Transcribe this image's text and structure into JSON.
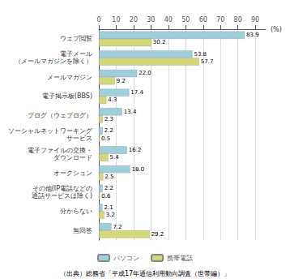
{
  "chart_data": {
    "type": "bar",
    "orientation": "horizontal",
    "categories": [
      "ウェブ閲覧",
      "電子メール\n（メールマガジンを除く）",
      "メールマガジン",
      "電子掲示板(BBS)",
      "ブログ（ウェブログ）",
      "ソーシャルネットワーキング\nサービス",
      "電子ファイルの交換・\nダウンロード",
      "オークション",
      "その他(IP電話などの\n通話サービスは除く)",
      "分からない",
      "無回答"
    ],
    "series": [
      {
        "name": "パソコン",
        "color": "#9ECFDB",
        "values": [
          83.9,
          53.8,
          22.0,
          17.4,
          13.4,
          2.2,
          16.2,
          18.0,
          2.2,
          2.1,
          7.2
        ],
        "value_labels": [
          "83.9",
          "53.8",
          "22.0",
          "17.4",
          "13.4",
          "2.2",
          "16.2",
          "18.0",
          "2.2",
          "2.1",
          "7.2"
        ]
      },
      {
        "name": "携帯電話",
        "color": "#D4D87A",
        "values": [
          30.2,
          57.7,
          9.2,
          4.3,
          2.3,
          0.5,
          5.4,
          2.5,
          0.6,
          3.2,
          29.2
        ],
        "value_labels": [
          "30.2",
          "57.7",
          "9.2",
          "4.3",
          "2.3",
          "0.5",
          "5.4",
          "2.5",
          "0.6",
          "3.2",
          "29.2"
        ]
      }
    ],
    "xlabel": "(%)",
    "xlim": [
      0,
      96
    ],
    "xticks": [
      0,
      10,
      20,
      30,
      40,
      50,
      60,
      70,
      80,
      90
    ],
    "grid": true,
    "legend": "bottom",
    "data_labels": true,
    "annotations": [
      "（出典）総務省「平成17年通信利用動向調査（世帯編）」"
    ]
  }
}
